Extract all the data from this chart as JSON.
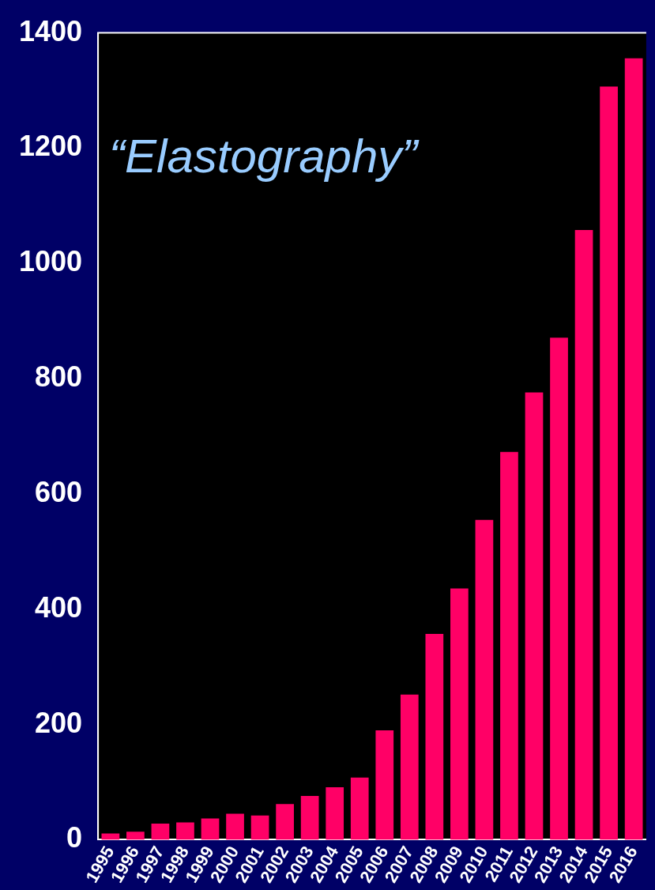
{
  "chart_data": {
    "type": "bar",
    "annotations": [
      "“Elastography”"
    ],
    "categories": [
      "1995",
      "1996",
      "1997",
      "1998",
      "1999",
      "2000",
      "2001",
      "2002",
      "2003",
      "2004",
      "2005",
      "2006",
      "2007",
      "2008",
      "2009",
      "2010",
      "2011",
      "2012",
      "2013",
      "2014",
      "2015",
      "2016"
    ],
    "values": [
      11,
      14,
      28,
      30,
      37,
      45,
      42,
      62,
      76,
      91,
      108,
      190,
      252,
      357,
      436,
      555,
      673,
      776,
      871,
      1058,
      1307,
      1356
    ],
    "color": "#ff0066",
    "ylim": [
      0,
      1400
    ],
    "yticks": [
      0,
      200,
      400,
      600,
      800,
      1000,
      1200,
      1400
    ],
    "grid": false,
    "legend": false
  }
}
